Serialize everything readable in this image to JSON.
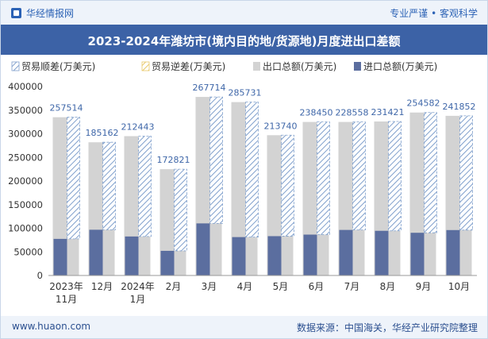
{
  "header": {
    "brand": "华经情报网",
    "tagline": "专业严谨 • 客观科学"
  },
  "colors": {
    "brand_blue": "#2b62b5",
    "title_bg": "#3c62a6",
    "export_bar": "#d3d3d3",
    "import_bar": "#5b6e9f",
    "surplus_hatch": "#7f9fcc",
    "deficit_hatch": "#e8c96a"
  },
  "chart_data": {
    "type": "bar",
    "title": "2023-2024年潍坊市(境内目的地/货源地)月度进出口差额",
    "categories": [
      "2023年\n11月",
      "12月",
      "2024年\n1月",
      "2月",
      "3月",
      "4月",
      "5月",
      "6月",
      "7月",
      "8月",
      "9月",
      "10月"
    ],
    "series": [
      {
        "name": "贸易顺差(万美元)",
        "values": [
          257514,
          185162,
          212443,
          172821,
          267714,
          285731,
          213740,
          238450,
          228558,
          231421,
          254582,
          241852
        ]
      },
      {
        "name": "贸易逆差(万美元)",
        "values": [
          0,
          0,
          0,
          0,
          0,
          0,
          0,
          0,
          0,
          0,
          0,
          0
        ]
      },
      {
        "name": "出口总额(万美元)",
        "values": [
          335000,
          282000,
          295000,
          225000,
          378000,
          367000,
          297000,
          325000,
          325000,
          326000,
          345000,
          338000
        ]
      },
      {
        "name": "进口总额(万美元)",
        "values": [
          77486,
          96838,
          82557,
          52179,
          110286,
          81269,
          83260,
          86550,
          96442,
          94579,
          90418,
          96148
        ]
      }
    ],
    "yticks": [
      "0",
      "50000",
      "100000",
      "150000",
      "200000",
      "250000",
      "300000",
      "350000",
      "400000"
    ],
    "ylim": [
      0,
      400000
    ],
    "legend_position": "top"
  },
  "footer": {
    "url": "www.huaon.com",
    "source": "数据来源：中国海关，华经产业研究院整理"
  }
}
